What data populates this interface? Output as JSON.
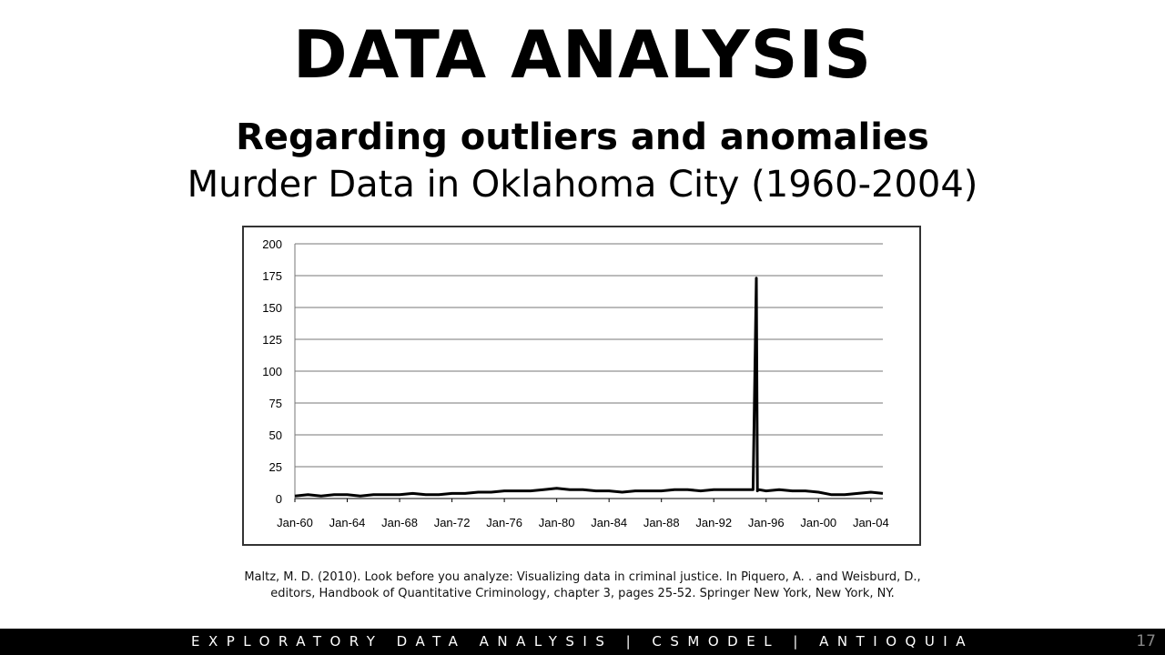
{
  "slide": {
    "title": "DATA ANALYSIS",
    "subtitle": "Regarding outliers and anomalies",
    "heading": "Murder Data in Oklahoma City (1960-2004)",
    "citation_line1": "Maltz, M. D. (2010). Look before you analyze: Visualizing data in criminal justice. In Piquero, A. . and Weisburd, D.,",
    "citation_line2": "editors, Handbook of Quantitative Criminology, chapter 3, pages 25-52. Springer New York, New York, NY.",
    "footer": "EXPLORATORY DATA ANALYSIS | CSMODEL | ANTIOQUIA",
    "page_number": "17"
  },
  "chart_data": {
    "type": "line",
    "title": "",
    "xlabel": "",
    "ylabel": "",
    "x_ticks": [
      "Jan-60",
      "Jan-64",
      "Jan-68",
      "Jan-72",
      "Jan-76",
      "Jan-80",
      "Jan-84",
      "Jan-88",
      "Jan-92",
      "Jan-96",
      "Jan-00",
      "Jan-04"
    ],
    "y_ticks": [
      0,
      25,
      50,
      75,
      100,
      125,
      150,
      175,
      200
    ],
    "ylim": [
      0,
      200
    ],
    "xlim": [
      "1960-01",
      "2004-12"
    ],
    "grid": true,
    "line_color": "#000000",
    "series": [
      {
        "x": [
          "1960-01",
          "1961-01",
          "1962-01",
          "1963-01",
          "1964-01",
          "1965-01",
          "1966-01",
          "1967-01",
          "1968-01",
          "1969-01",
          "1970-01",
          "1971-01",
          "1972-01",
          "1973-01",
          "1974-01",
          "1975-01",
          "1976-01",
          "1977-01",
          "1978-01",
          "1979-01",
          "1980-01",
          "1981-01",
          "1982-01",
          "1983-01",
          "1984-01",
          "1985-01",
          "1986-01",
          "1987-01",
          "1988-01",
          "1989-01",
          "1990-01",
          "1991-01",
          "1992-01",
          "1993-01",
          "1994-01",
          "1995-01",
          "1995-04",
          "1995-05",
          "1995-06",
          "1996-01",
          "1997-01",
          "1998-01",
          "1999-01",
          "2000-01",
          "2001-01",
          "2002-01",
          "2003-01",
          "2004-01",
          "2004-12"
        ],
        "y": [
          2,
          3,
          2,
          3,
          3,
          2,
          3,
          3,
          3,
          4,
          3,
          3,
          4,
          4,
          5,
          5,
          6,
          6,
          6,
          7,
          8,
          7,
          7,
          6,
          6,
          5,
          6,
          6,
          6,
          7,
          7,
          6,
          7,
          7,
          7,
          7,
          173,
          6,
          7,
          6,
          7,
          6,
          6,
          5,
          3,
          3,
          4,
          5,
          4
        ]
      }
    ]
  }
}
